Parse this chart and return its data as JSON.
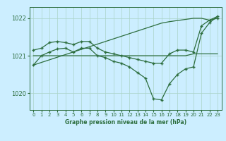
{
  "title": "Graphe pression niveau de la mer (hPa)",
  "bg_color": "#cceeff",
  "grid_color": "#aad4c8",
  "line_color": "#2d6e3e",
  "ylim": [
    1019.55,
    1022.3
  ],
  "yticks": [
    1020,
    1021,
    1022
  ],
  "xlim": [
    -0.5,
    23.5
  ],
  "xticks": [
    0,
    1,
    2,
    3,
    4,
    5,
    6,
    7,
    8,
    9,
    10,
    11,
    12,
    13,
    14,
    15,
    16,
    17,
    18,
    19,
    20,
    21,
    22,
    23
  ],
  "hours": [
    0,
    1,
    2,
    3,
    4,
    5,
    6,
    7,
    8,
    9,
    10,
    11,
    12,
    13,
    14,
    15,
    16,
    17,
    18,
    19,
    20,
    21,
    22,
    23
  ],
  "line_rising": [
    1020.75,
    1020.82,
    1020.89,
    1020.96,
    1021.03,
    1021.1,
    1021.17,
    1021.24,
    1021.31,
    1021.38,
    1021.45,
    1021.52,
    1021.59,
    1021.66,
    1021.73,
    1021.8,
    1021.87,
    1021.91,
    1021.94,
    1021.97,
    1022.0,
    1022.0,
    1021.95,
    1022.05
  ],
  "line_flat": [
    1021.0,
    1021.0,
    1021.0,
    1021.0,
    1021.0,
    1021.0,
    1021.0,
    1021.0,
    1021.0,
    1021.0,
    1021.0,
    1021.0,
    1021.0,
    1021.0,
    1021.0,
    1021.0,
    1021.0,
    1021.0,
    1021.0,
    1021.0,
    1021.05,
    1021.05,
    1021.05,
    1021.05
  ],
  "line_upper": [
    1021.15,
    1021.2,
    1021.35,
    1021.38,
    1021.35,
    1021.3,
    1021.38,
    1021.38,
    1021.2,
    1021.1,
    1021.05,
    1021.0,
    1020.95,
    1020.9,
    1020.85,
    1020.8,
    1020.8,
    1021.05,
    1021.15,
    1021.15,
    1021.1,
    1021.8,
    1021.95,
    1022.0
  ],
  "line_lower": [
    1020.75,
    1021.0,
    1021.1,
    1021.18,
    1021.2,
    1021.1,
    1021.2,
    1021.2,
    1021.0,
    1020.95,
    1020.85,
    1020.8,
    1020.7,
    1020.55,
    1020.4,
    1019.85,
    1019.82,
    1020.25,
    1020.5,
    1020.65,
    1020.7,
    1021.6,
    1021.88,
    1022.05
  ]
}
